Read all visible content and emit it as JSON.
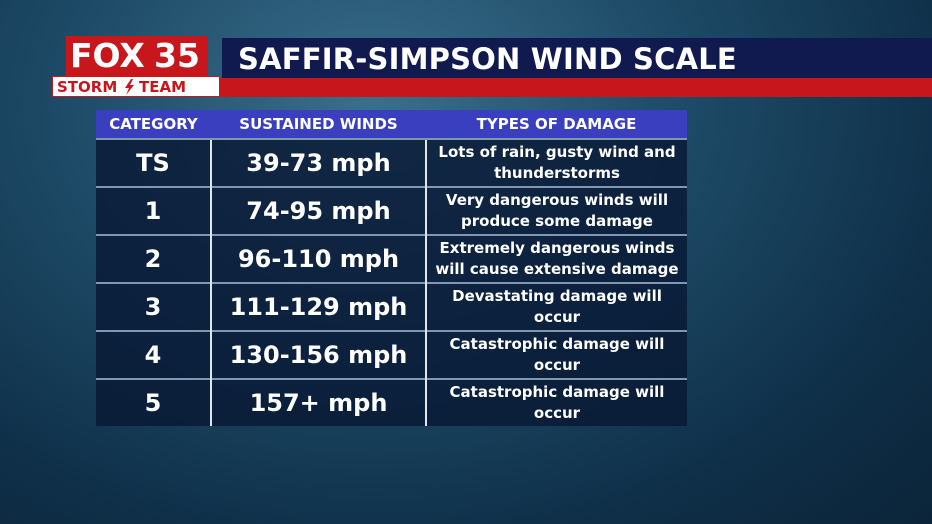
{
  "logo": {
    "brand": "FOX",
    "channel": "35",
    "team_left": "STORM",
    "team_right": "TEAM"
  },
  "header": {
    "title": "SAFFIR-SIMPSON WIND SCALE"
  },
  "table": {
    "columns": [
      "CATEGORY",
      "SUSTAINED WINDS",
      "TYPES OF DAMAGE"
    ],
    "rows": [
      [
        "TS",
        "39-73 mph",
        "Lots of rain, gusty wind and thunderstorms"
      ],
      [
        "1",
        "74-95 mph",
        "Very dangerous winds will produce some damage"
      ],
      [
        "2",
        "96-110 mph",
        "Extremely dangerous winds will cause extensive damage"
      ],
      [
        "3",
        "111-129 mph",
        "Devastating damage will occur"
      ],
      [
        "4",
        "130-156 mph",
        "Catastrophic damage will occur"
      ],
      [
        "5",
        "157+ mph",
        "Catastrophic damage will occur"
      ]
    ]
  }
}
